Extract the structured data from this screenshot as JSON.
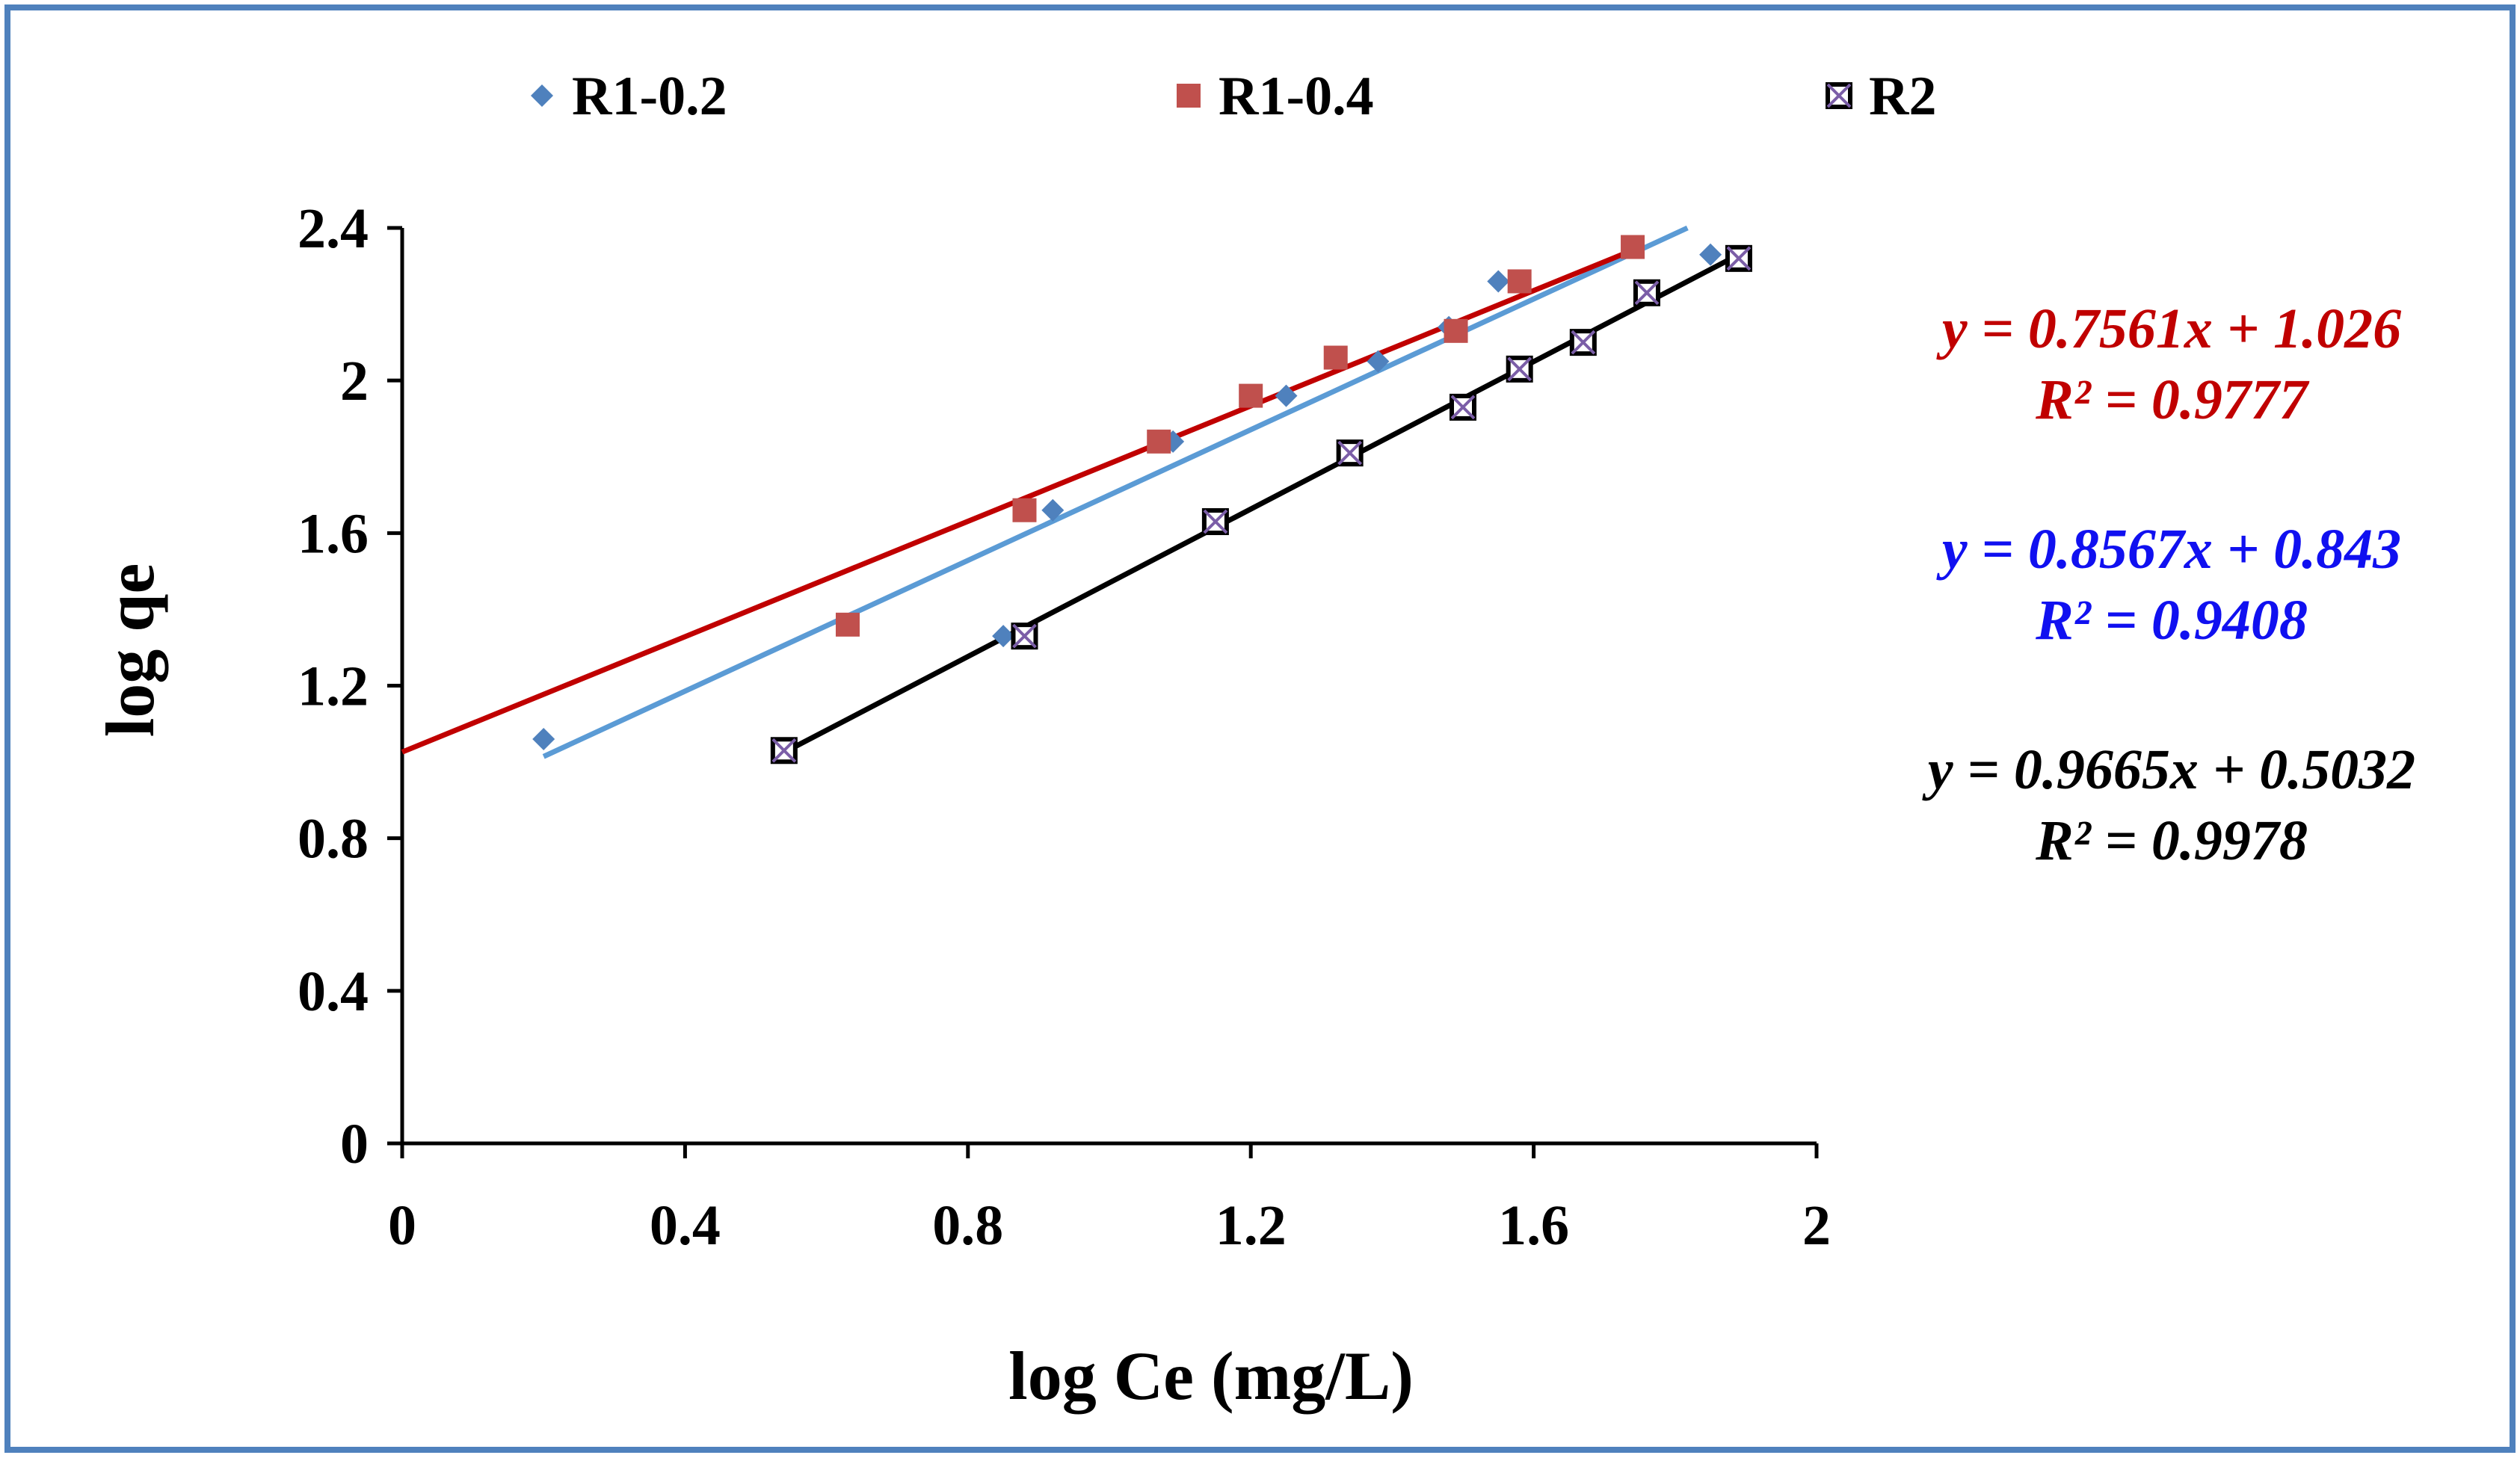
{
  "chart_data": {
    "type": "scatter",
    "title": "",
    "xlabel": "log Ce (mg/L)",
    "ylabel": "log qe",
    "xlim": [
      0,
      2
    ],
    "ylim": [
      0,
      2.4
    ],
    "xticks": [
      0,
      0.4,
      0.8,
      1.2,
      1.6,
      2
    ],
    "yticks": [
      0,
      0.4,
      0.8,
      1.2,
      1.6,
      2,
      2.4
    ],
    "xtick_labels": [
      "0",
      "0.4",
      "0.8",
      "1.2",
      "1.6",
      "2"
    ],
    "ytick_labels": [
      "0",
      "0.4",
      "0.8",
      "1.2",
      "1.6",
      "2",
      "2.4"
    ],
    "grid": false,
    "legend_position": "top",
    "series": [
      {
        "name": "R1-0.2",
        "marker": "diamond",
        "color": "#4F81BD",
        "line_color": "#5B9BD5",
        "x": [
          0.2,
          0.85,
          0.92,
          1.09,
          1.25,
          1.38,
          1.48,
          1.55,
          1.85
        ],
        "y": [
          1.06,
          1.33,
          1.66,
          1.84,
          1.96,
          2.05,
          2.14,
          2.26,
          2.33
        ],
        "fit": {
          "slope": 0.8567,
          "intercept": 0.843,
          "x_range": [
            0.2,
            1.85
          ]
        },
        "equation": "y = 0.8567x + 0.843",
        "r2": "R² = 0.9408",
        "equation_color": "#1010F0"
      },
      {
        "name": "R1-0.4",
        "marker": "square",
        "color": "#C0504D",
        "line_color": "#C00000",
        "x": [
          0.63,
          0.88,
          1.07,
          1.2,
          1.32,
          1.49,
          1.58,
          1.74
        ],
        "y": [
          1.36,
          1.66,
          1.84,
          1.96,
          2.06,
          2.13,
          2.26,
          2.35
        ],
        "fit": {
          "slope": 0.7561,
          "intercept": 1.026,
          "x_range": [
            0,
            1.74
          ]
        },
        "equation": "y = 0.7561x + 1.026",
        "r2": "R² = 0.9777",
        "equation_color": "#C00000"
      },
      {
        "name": "R2",
        "marker": "x-square",
        "color": "#000000",
        "line_color": "#000000",
        "x": [
          0.54,
          0.88,
          1.15,
          1.34,
          1.5,
          1.58,
          1.67,
          1.76,
          1.89
        ],
        "y": [
          1.03,
          1.33,
          1.63,
          1.81,
          1.93,
          2.03,
          2.1,
          2.23,
          2.32
        ],
        "fit": {
          "slope": 0.9665,
          "intercept": 0.5032,
          "x_range": [
            0.54,
            1.89
          ]
        },
        "equation": "y = 0.9665x + 0.5032",
        "r2": "R² = 0.9978",
        "equation_color": "#000000"
      }
    ]
  },
  "colors": {
    "frame_border": "#4F81BD",
    "axis": "#000000"
  }
}
